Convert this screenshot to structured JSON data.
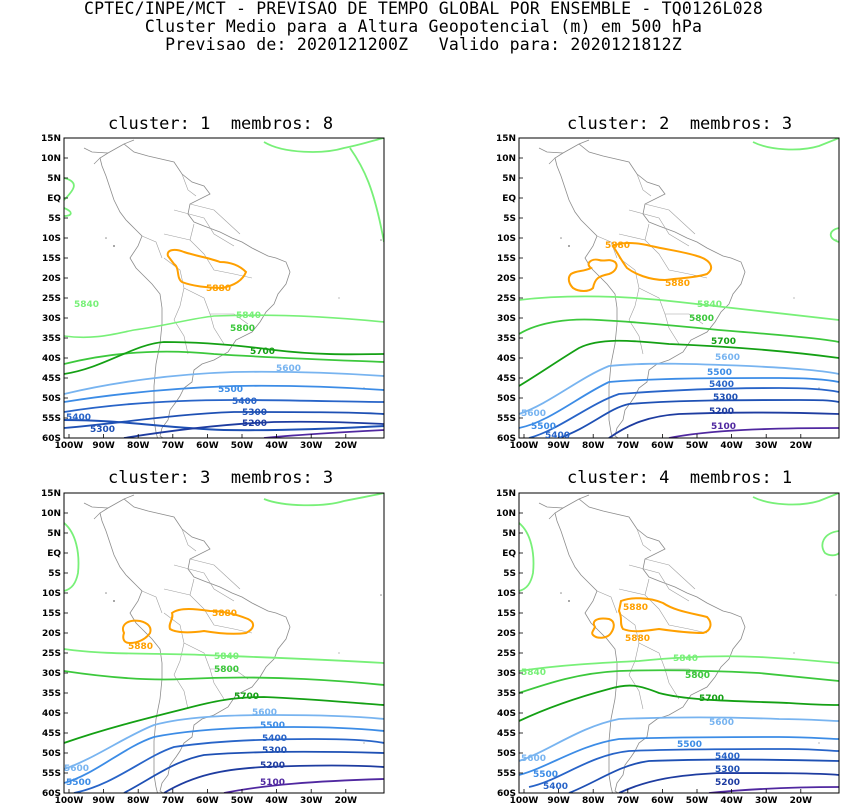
{
  "header": {
    "line1": "CPTEC/INPE/MCT - PREVISAO DE TEMPO GLOBAL POR ENSEMBLE - TQ0126L028",
    "line2": "Cluster Medio para a Altura Geopotencial (m) em 500 hPa",
    "line3": "Previsao de: 2020121200Z   Valido para: 2020121812Z"
  },
  "lat_labels": [
    "15N",
    "10N",
    "5N",
    "EQ",
    "5S",
    "10S",
    "15S",
    "20S",
    "25S",
    "30S",
    "35S",
    "40S",
    "45S",
    "50S",
    "55S",
    "60S"
  ],
  "lon_labels": [
    "100W",
    "90W",
    "80W",
    "70W",
    "60W",
    "50W",
    "40W",
    "30W",
    "20W"
  ],
  "colors": {
    "c5880": "#ffa000",
    "c5840": "#78f078",
    "c5800": "#3cc83c",
    "c5700": "#14a014",
    "c5600": "#78b4f0",
    "c5500": "#3c8ce6",
    "c5400": "#2864c8",
    "c5300": "#1e50b4",
    "c5200": "#1e3ca0",
    "c5100": "#5028a0",
    "c5900": "#78f078"
  },
  "panels": [
    {
      "title": "cluster: 1  membros: 8",
      "labels": {
        "l5880": "5880",
        "l5840a": "5840",
        "l5840b": "5840",
        "l5800": "5800",
        "l5700": "5700",
        "l5600": "5600",
        "l5500": "5500",
        "l5400a": "5400",
        "l5400b": "5400",
        "l5300a": "5300",
        "l5300b": "5300",
        "l5200": "5200"
      }
    },
    {
      "title": "cluster: 2  membros: 3",
      "labels": {
        "l5880a": "5880",
        "l5880b": "5880",
        "l5840": "5840",
        "l5800": "5800",
        "l5700": "5700",
        "l5600a": "5600",
        "l5600b": "5600",
        "l5500a": "5500",
        "l5500b": "5500",
        "l5400a": "5400",
        "l5400b": "5400",
        "l5300": "5300",
        "l5200": "5200",
        "l5100": "5100"
      }
    },
    {
      "title": "cluster: 3  membros: 3",
      "labels": {
        "l5880a": "5880",
        "l5880b": "5880",
        "l5840": "5840",
        "l5800": "5800",
        "l5700": "5700",
        "l5600a": "5600",
        "l5600b": "5600",
        "l5500a": "5500",
        "l5500b": "5500",
        "l5400": "5400",
        "l5300": "5300",
        "l5200": "5200",
        "l5100": "5100"
      }
    },
    {
      "title": "cluster: 4  membros: 1",
      "labels": {
        "l5880a": "5880",
        "l5880b": "5880",
        "l5840a": "5840",
        "l5840b": "5840",
        "l5800": "5800",
        "l5700": "5700",
        "l5600a": "5600",
        "l5600b": "5600",
        "l5500a": "5500",
        "l5500b": "5500",
        "l5400a": "5400",
        "l5400b": "5400",
        "l5300": "5300",
        "l5200": "5200"
      }
    }
  ]
}
